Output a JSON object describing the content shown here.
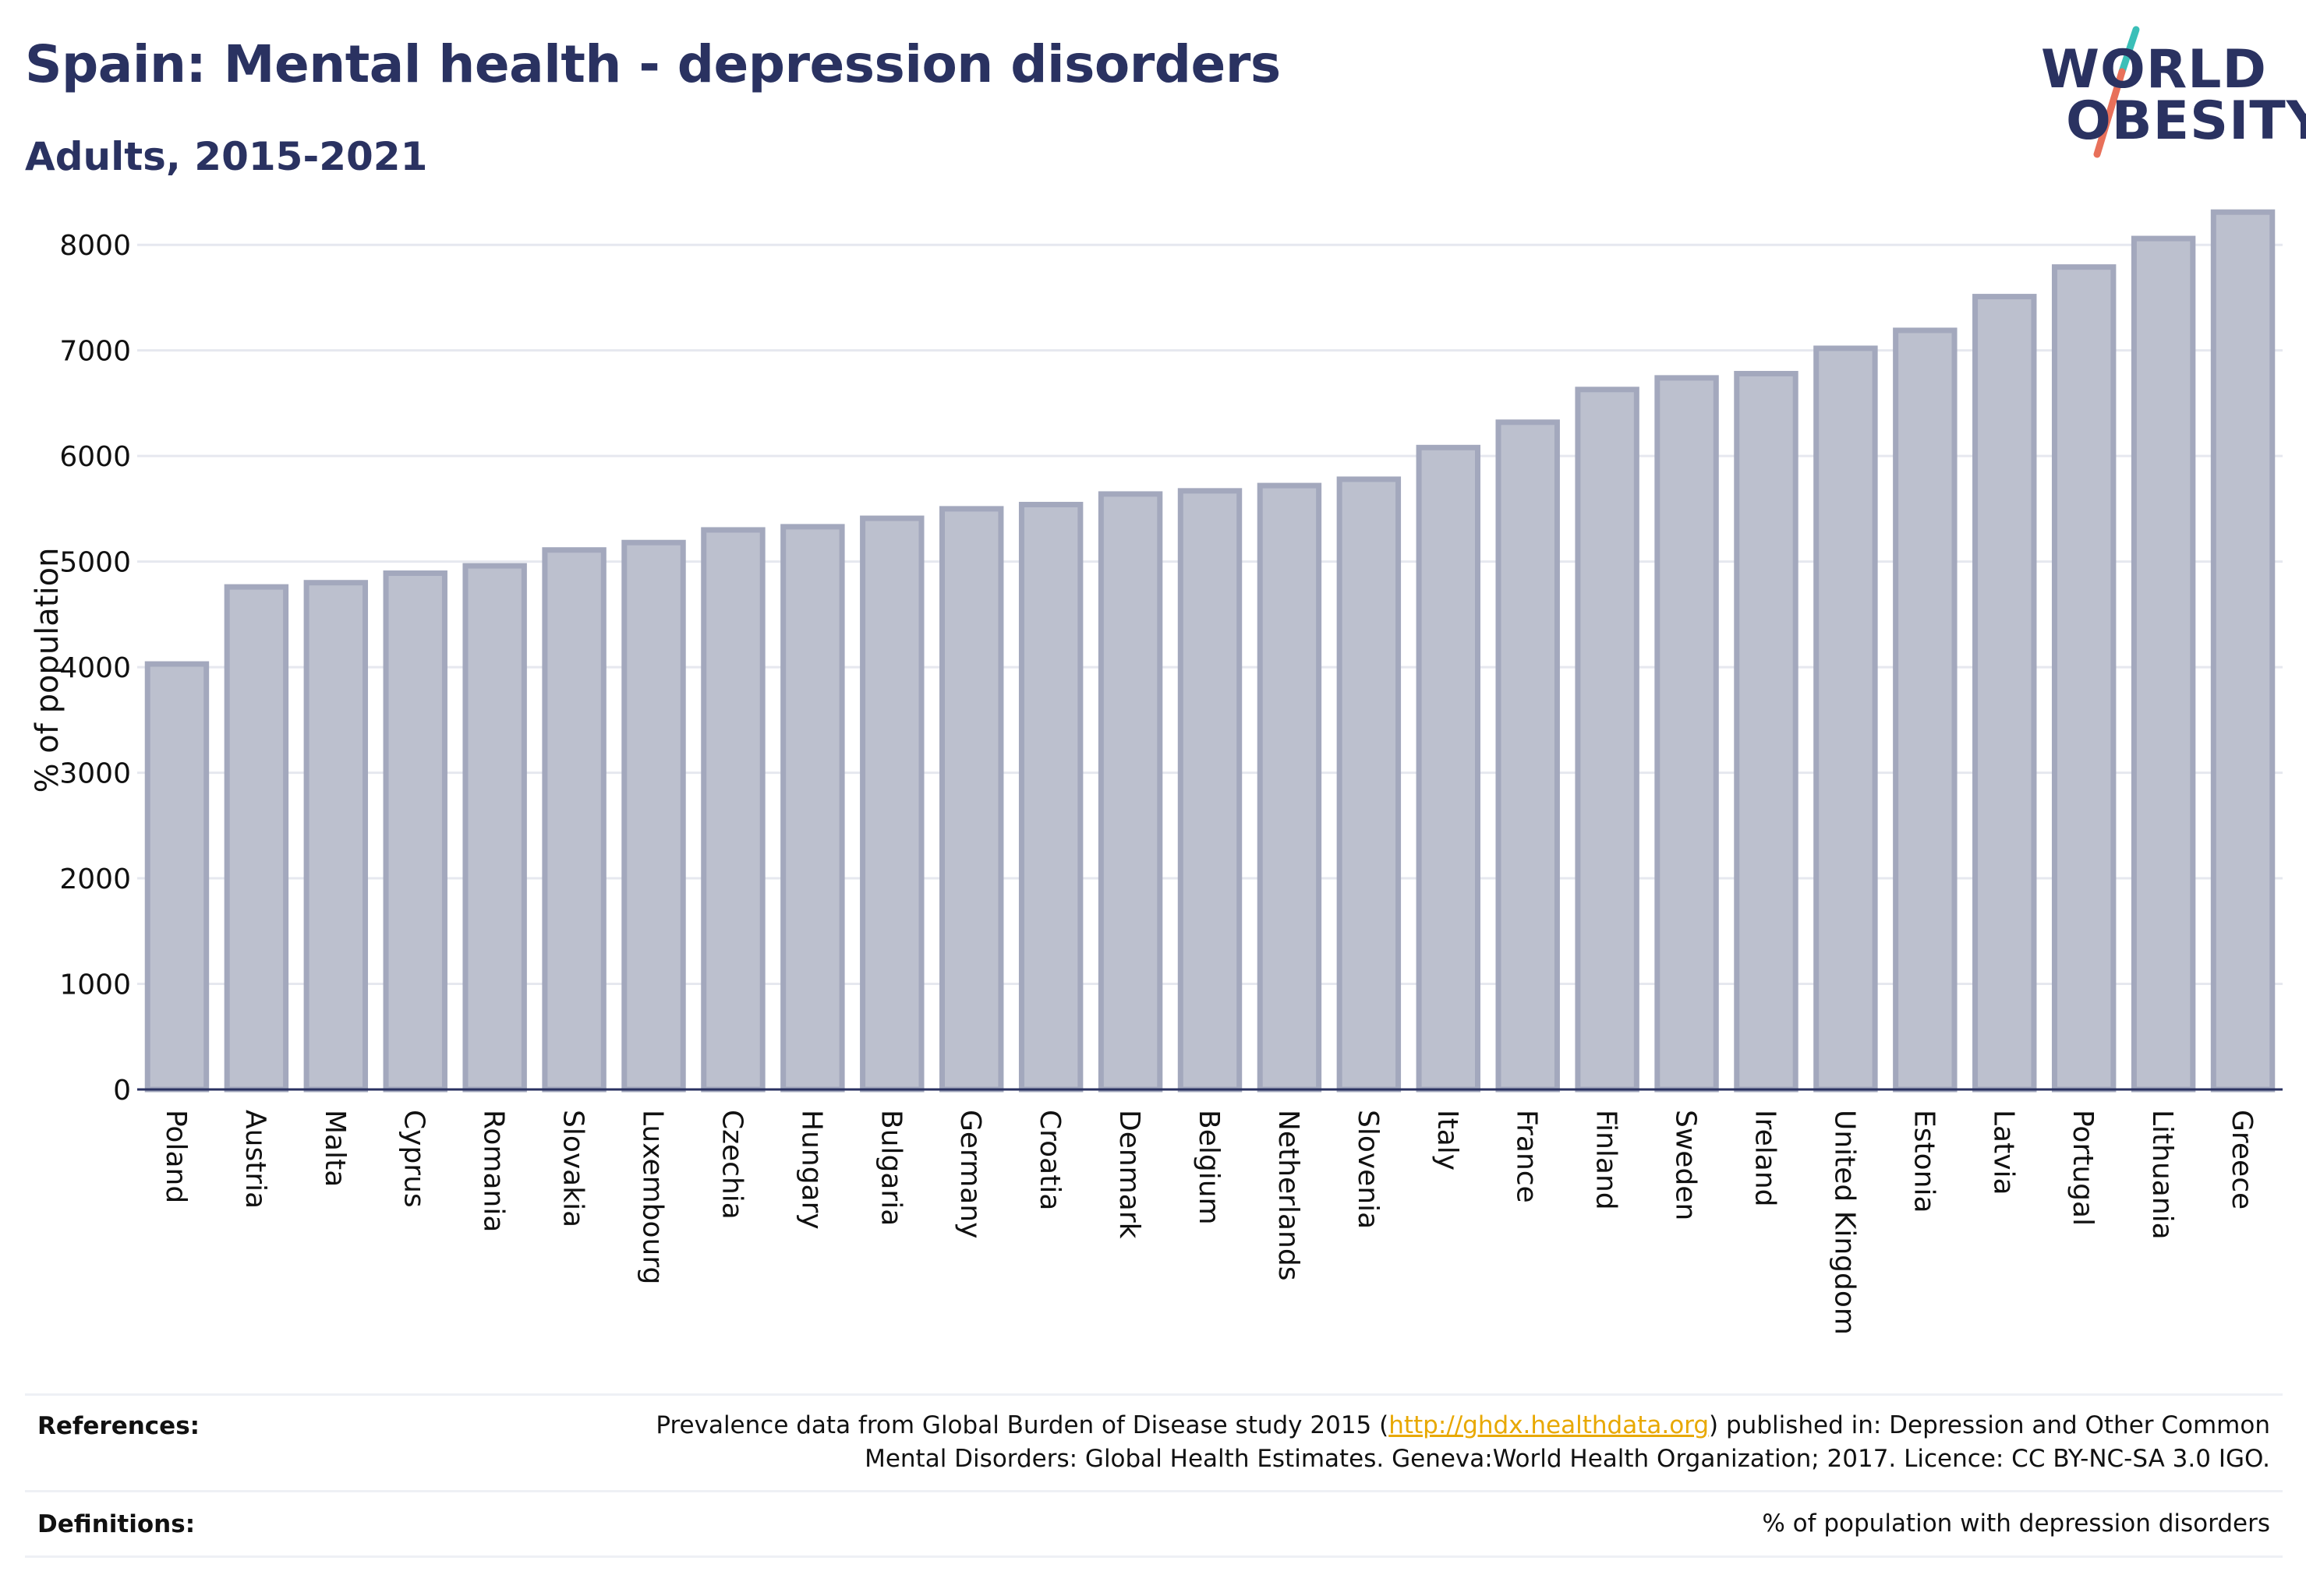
{
  "header": {
    "title": "Spain: Mental health - depression disorders",
    "subtitle": "Adults, 2015-2021"
  },
  "logo": {
    "line1": "WORLD",
    "line2": "OBESITY",
    "slash_colors": [
      "#3bbfb8",
      "#e8705a"
    ]
  },
  "chart_data": {
    "type": "bar",
    "ylabel": "% of population",
    "ylim": [
      0,
      8400
    ],
    "yticks": [
      0,
      1000,
      2000,
      3000,
      4000,
      5000,
      6000,
      7000,
      8000
    ],
    "grid": true,
    "categories": [
      "Poland",
      "Austria",
      "Malta",
      "Cyprus",
      "Romania",
      "Slovakia",
      "Luxembourg",
      "Czechia",
      "Hungary",
      "Bulgaria",
      "Germany",
      "Croatia",
      "Denmark",
      "Belgium",
      "Netherlands",
      "Slovenia",
      "Italy",
      "France",
      "Finland",
      "Sweden",
      "Ireland",
      "United Kingdom",
      "Estonia",
      "Latvia",
      "Portugal",
      "Lithuania",
      "Greece"
    ],
    "values": [
      4030,
      4760,
      4800,
      4890,
      4960,
      5110,
      5180,
      5300,
      5330,
      5410,
      5500,
      5540,
      5640,
      5670,
      5720,
      5780,
      6080,
      6320,
      6630,
      6740,
      6780,
      7020,
      7190,
      7510,
      7790,
      8060,
      8310
    ],
    "bar_color": "#bcc0ce",
    "bar_edge_color": "#a3a8bd"
  },
  "footer": {
    "references_label": "References:",
    "references_pre": "Prevalence data from Global Burden of Disease study 2015 (",
    "references_link": "http://ghdx.healthdata.org",
    "references_post": ") published in: Depression and Other Common",
    "references_line2": "Mental Disorders: Global Health Estimates. Geneva:World Health Organization; 2017. Licence: CC BY-NC-SA 3.0 IGO.",
    "definitions_label": "Definitions:",
    "definitions_text": "% of population with depression disorders"
  }
}
